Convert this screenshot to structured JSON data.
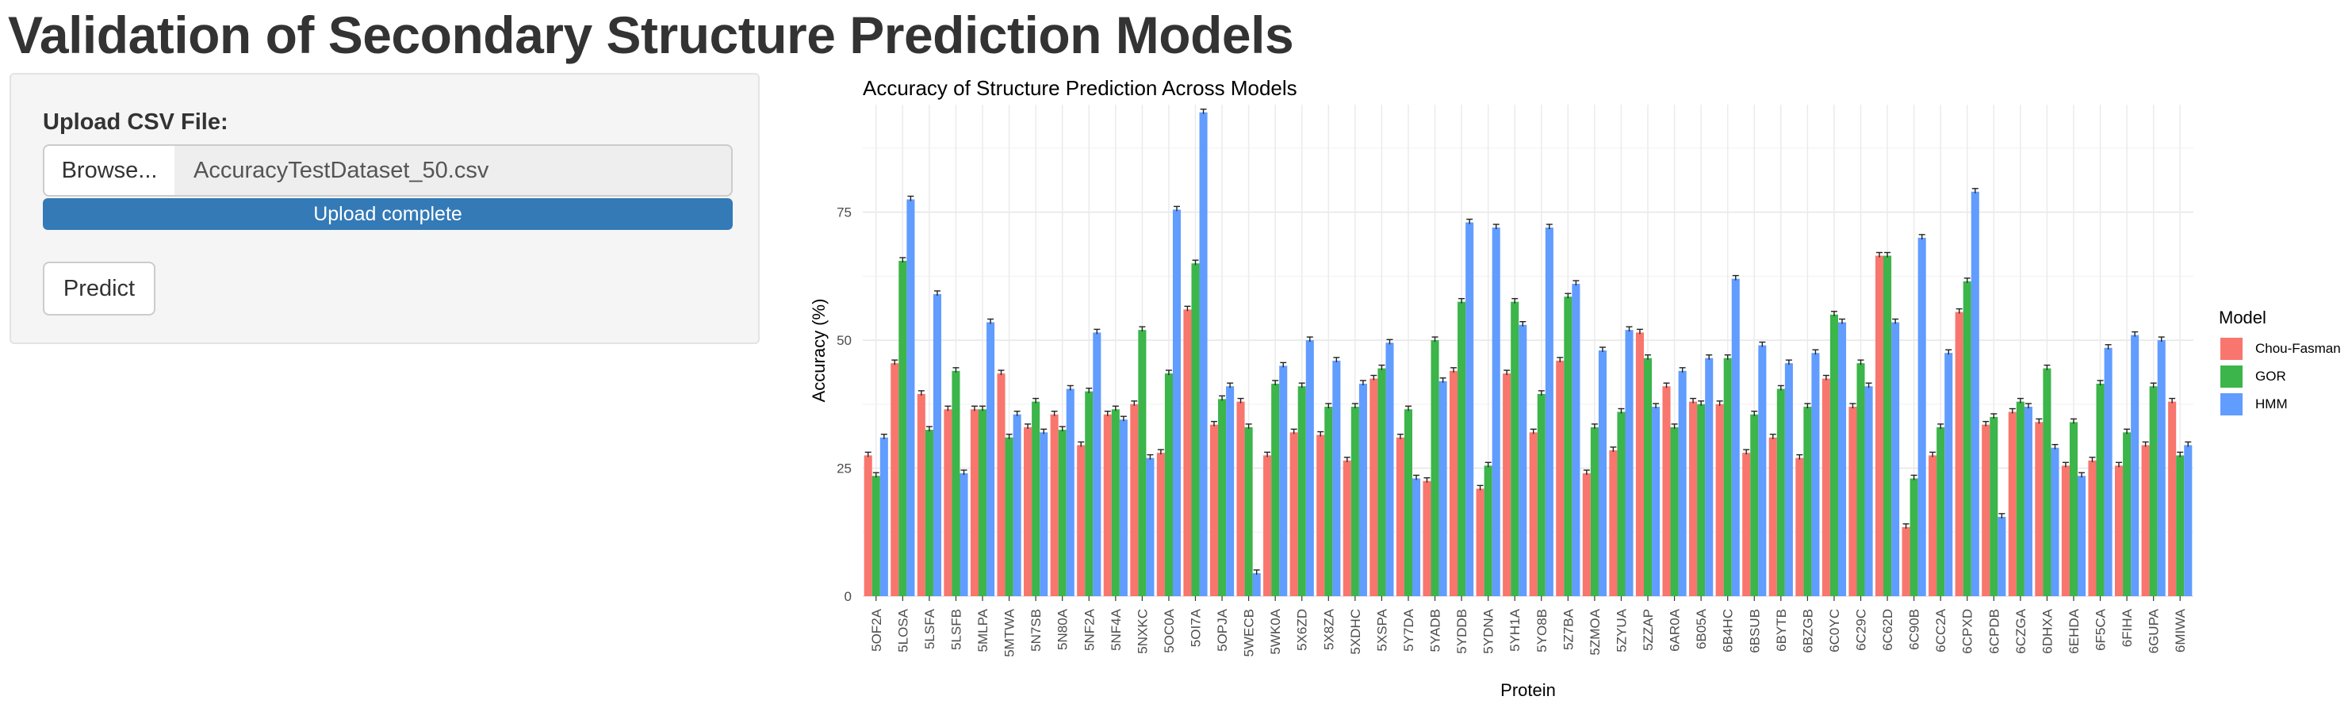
{
  "page": {
    "title": "Validation of Secondary Structure Prediction Models"
  },
  "upload": {
    "label": "Upload CSV File:",
    "browse_label": "Browse...",
    "file_name": "AccuracyTestDataset_50.csv",
    "status": "Upload complete",
    "progress_percent": 100
  },
  "predict": {
    "label": "Predict"
  },
  "colors": {
    "progress": "#337ab7"
  },
  "chart_data": {
    "type": "bar",
    "title": "Accuracy of Structure Prediction Across Models",
    "xlabel": "Protein",
    "ylabel": "Accuracy (%)",
    "ylim": [
      0,
      96
    ],
    "yticks": [
      0,
      25,
      50,
      75
    ],
    "grid": true,
    "error_bars": true,
    "legend": {
      "title": "Model",
      "position": "right"
    },
    "categories": [
      "5OF2A",
      "5LOSA",
      "5LSFA",
      "5LSFB",
      "5MLPA",
      "5MTWA",
      "5N7SB",
      "5N80A",
      "5NF2A",
      "5NF4A",
      "5NXKC",
      "5OC0A",
      "5OI7A",
      "5OPJA",
      "5WECB",
      "5WK0A",
      "5X6ZD",
      "5X8ZA",
      "5XDHC",
      "5XSPA",
      "5Y7DA",
      "5YADB",
      "5YDDB",
      "5YDNA",
      "5YH1A",
      "5YO8B",
      "5Z7BA",
      "5ZMOA",
      "5ZYUA",
      "5ZZAP",
      "6AR0A",
      "6B05A",
      "6B4HC",
      "6BSUB",
      "6BYTB",
      "6BZGB",
      "6C0YC",
      "6C29C",
      "6C62D",
      "6C90B",
      "6CC2A",
      "6CPXD",
      "6CPDB",
      "6CZGA",
      "6DHXA",
      "6EHDA",
      "6F5CA",
      "6FIHA",
      "6GUPA",
      "6MIWA"
    ],
    "series": [
      {
        "name": "Chou-Fasman",
        "color": "#F8766D",
        "values": [
          27.5,
          45.5,
          39.5,
          36.5,
          36.5,
          43.5,
          33,
          35.5,
          29.5,
          35.5,
          37.5,
          28,
          56,
          33.5,
          38,
          27.5,
          32,
          31.5,
          26.5,
          42.5,
          31,
          22.5,
          44,
          21,
          43.5,
          32,
          46,
          24,
          28.5,
          51.5,
          41,
          38,
          37.5,
          28,
          31,
          27,
          42.5,
          37,
          66.5,
          13.5,
          27.5,
          55.5,
          33.5,
          36,
          34,
          25.5,
          26.5,
          25.5,
          29.5,
          38
        ]
      },
      {
        "name": "GOR",
        "color": "#3CB54A",
        "values": [
          23.5,
          65.5,
          32.5,
          44,
          36.5,
          31,
          38,
          32.5,
          40,
          36.5,
          52,
          43.5,
          65,
          38.5,
          33,
          41.5,
          41,
          37,
          37,
          44.5,
          36.5,
          50,
          57.5,
          25.5,
          57.5,
          39.5,
          58.5,
          33,
          36,
          46.5,
          33,
          37.5,
          46.5,
          35.5,
          40.5,
          37,
          55,
          45.5,
          66.5,
          23,
          33,
          61.5,
          35,
          38,
          44.5,
          34,
          41.5,
          32,
          41,
          27.5
        ]
      },
      {
        "name": "HMM",
        "color": "#619CFF",
        "values": [
          31,
          77.5,
          59,
          24,
          53.5,
          35.5,
          32,
          40.5,
          51.5,
          34.5,
          27,
          75.5,
          94.5,
          41,
          4.5,
          45,
          50,
          46,
          41.5,
          49.5,
          23,
          42,
          73,
          72,
          53,
          72,
          61,
          48,
          52,
          37,
          44,
          46.5,
          62,
          49,
          45.5,
          47.5,
          53.5,
          41,
          53.5,
          70,
          47.5,
          79,
          15.5,
          37,
          29,
          23.5,
          48.5,
          51,
          50,
          29.5
        ]
      }
    ]
  }
}
